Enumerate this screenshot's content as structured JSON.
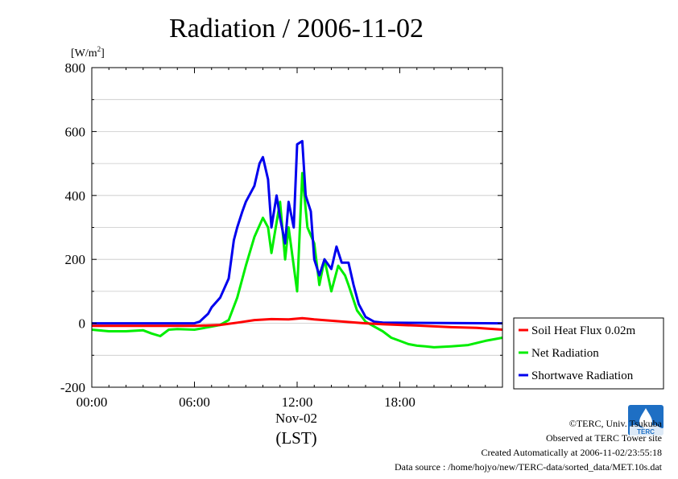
{
  "chart_data": {
    "type": "line",
    "title": "Radiation / 2006-11-02",
    "ylabel_main": "[W/m",
    "ylabel_sup": "2",
    "ylabel_close": "]",
    "xlabel_date": "Nov-02",
    "xlabel_unit": "(LST)",
    "ylim": [
      -200,
      800
    ],
    "xlim_hours": [
      0,
      24
    ],
    "y_ticks": [
      -200,
      0,
      200,
      400,
      600,
      800
    ],
    "x_ticks": [
      {
        "hour": 0,
        "label": "00:00"
      },
      {
        "hour": 6,
        "label": "06:00"
      },
      {
        "hour": 12,
        "label": "12:00"
      },
      {
        "hour": 18,
        "label": "18:00"
      }
    ],
    "grid": true,
    "legend_position": "right",
    "series": [
      {
        "name": "Soil Heat Flux 0.02m",
        "color": "#ff0000",
        "points": [
          [
            0,
            -8
          ],
          [
            3,
            -8
          ],
          [
            6,
            -8
          ],
          [
            7.5,
            -5
          ],
          [
            8.5,
            2
          ],
          [
            9.5,
            10
          ],
          [
            10.5,
            13
          ],
          [
            11.5,
            12
          ],
          [
            12.3,
            16
          ],
          [
            13,
            12
          ],
          [
            14,
            8
          ],
          [
            15,
            4
          ],
          [
            16,
            0
          ],
          [
            17,
            -3
          ],
          [
            19,
            -7
          ],
          [
            21,
            -12
          ],
          [
            22.5,
            -14
          ],
          [
            24,
            -20
          ]
        ]
      },
      {
        "name": "Net Radiation",
        "color": "#00ee00",
        "points": [
          [
            0,
            -20
          ],
          [
            1,
            -25
          ],
          [
            2,
            -25
          ],
          [
            3,
            -22
          ],
          [
            3.5,
            -32
          ],
          [
            4,
            -40
          ],
          [
            4.5,
            -20
          ],
          [
            5,
            -18
          ],
          [
            6,
            -20
          ],
          [
            6.5,
            -15
          ],
          [
            7,
            -10
          ],
          [
            7.5,
            -5
          ],
          [
            8,
            10
          ],
          [
            8.5,
            80
          ],
          [
            9,
            180
          ],
          [
            9.5,
            270
          ],
          [
            10,
            330
          ],
          [
            10.3,
            300
          ],
          [
            10.5,
            220
          ],
          [
            11,
            380
          ],
          [
            11.3,
            200
          ],
          [
            11.5,
            300
          ],
          [
            12,
            100
          ],
          [
            12.3,
            470
          ],
          [
            12.6,
            300
          ],
          [
            13,
            250
          ],
          [
            13.3,
            120
          ],
          [
            13.6,
            200
          ],
          [
            14,
            100
          ],
          [
            14.4,
            180
          ],
          [
            14.8,
            150
          ],
          [
            15,
            120
          ],
          [
            15.5,
            40
          ],
          [
            16,
            5
          ],
          [
            16.5,
            -10
          ],
          [
            17,
            -25
          ],
          [
            17.5,
            -45
          ],
          [
            18,
            -55
          ],
          [
            18.5,
            -65
          ],
          [
            19,
            -70
          ],
          [
            19.5,
            -72
          ],
          [
            20,
            -75
          ],
          [
            21,
            -72
          ],
          [
            22,
            -68
          ],
          [
            23,
            -55
          ],
          [
            24,
            -45
          ]
        ]
      },
      {
        "name": "Shortwave Radiation",
        "color": "#0000ee",
        "points": [
          [
            0,
            0
          ],
          [
            6,
            0
          ],
          [
            6.3,
            5
          ],
          [
            6.8,
            30
          ],
          [
            7,
            50
          ],
          [
            7.5,
            80
          ],
          [
            8,
            140
          ],
          [
            8.3,
            260
          ],
          [
            8.5,
            300
          ],
          [
            8.8,
            350
          ],
          [
            9,
            380
          ],
          [
            9.5,
            430
          ],
          [
            9.8,
            500
          ],
          [
            10,
            520
          ],
          [
            10.3,
            450
          ],
          [
            10.5,
            300
          ],
          [
            10.8,
            400
          ],
          [
            11,
            330
          ],
          [
            11.3,
            250
          ],
          [
            11.5,
            380
          ],
          [
            11.8,
            300
          ],
          [
            12,
            560
          ],
          [
            12.3,
            570
          ],
          [
            12.5,
            400
          ],
          [
            12.8,
            350
          ],
          [
            13,
            200
          ],
          [
            13.3,
            150
          ],
          [
            13.6,
            200
          ],
          [
            14,
            170
          ],
          [
            14.3,
            240
          ],
          [
            14.6,
            190
          ],
          [
            15,
            190
          ],
          [
            15.3,
            120
          ],
          [
            15.6,
            60
          ],
          [
            16,
            20
          ],
          [
            16.5,
            5
          ],
          [
            17,
            2
          ],
          [
            24,
            0
          ]
        ]
      }
    ]
  },
  "credits": {
    "copyright": "©TERC, Univ. Tsukuba",
    "observed": "Observed at TERC Tower site",
    "created": "Created Automatically at 2006-11-02/23:55:18",
    "source": "Data source : /home/hojyo/new/TERC-data/sorted_data/MET.10s.dat"
  },
  "logo_text": "TERC"
}
